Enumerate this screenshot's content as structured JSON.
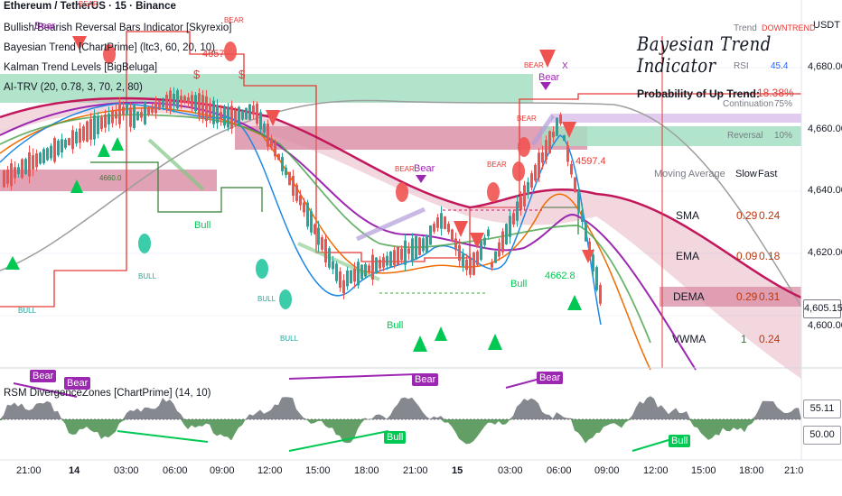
{
  "header": {
    "symbol": "Ethereum / TetherUS · 15 · Binance",
    "indicators": [
      "Bullish/Bearish Reversal Bars Indicator [Skyrexio]",
      "Bayesian Trend [ChartPrime] (ltc3, 60, 20, 10)",
      "Kalman Trend Levels [BigBeluga]",
      "AI-TRV (20, 0.78, 3, 70, 2, 80)"
    ]
  },
  "price_axis": {
    "currency": "USDT",
    "ticks": [
      "4,680.00",
      "4,660.00",
      "4,640.00",
      "4,620.00",
      "4,600.00"
    ],
    "current_price": "4,605.15"
  },
  "time_axis": {
    "ticks": [
      "21:00",
      "14",
      "03:00",
      "06:00",
      "09:00",
      "12:00",
      "15:00",
      "18:00",
      "21:00",
      "15",
      "03:00",
      "06:00",
      "09:00",
      "12:00",
      "15:00",
      "18:00",
      "21:0"
    ]
  },
  "rsi_pane": {
    "title": "RSM DivergenceZones [ChartPrime] (14, 10)",
    "value_badge": "55.11",
    "level_badge": "50.00",
    "tags": [
      "Bear",
      "Bear",
      "Bear",
      "Bear",
      "Bull",
      "Bull"
    ]
  },
  "bayesian_panel": {
    "title": "Bayesian Trend Indicator",
    "trend_label": "Trend",
    "trend_value": "DOWNTREND",
    "rsi_label": "RSI",
    "rsi_value": "45.4",
    "prob_label": "Probability of Up Trend:",
    "prob_value": "18.38%",
    "continuation_label": "Continuation",
    "continuation_value": "75%",
    "reversal_label": "Reversal",
    "reversal_value": "10%",
    "table": {
      "headers": [
        "Moving Average",
        "Slow",
        "Fast"
      ],
      "rows": [
        {
          "name": "SMA",
          "slow": "0.29",
          "fast": "0.24"
        },
        {
          "name": "EMA",
          "slow": "0.09",
          "fast": "0.18"
        },
        {
          "name": "DEMA",
          "slow": "0.29",
          "fast": "0.31"
        },
        {
          "name": "VWMA",
          "slow": "1",
          "fast": "0.24"
        }
      ]
    }
  },
  "annotations": {
    "bear_labels": [
      "BEAR",
      "BEAR",
      "BEAR",
      "BEAR",
      "BEAR",
      "BEAR",
      "Bear",
      "Bear",
      "Bear"
    ],
    "bull_labels": [
      "BULL",
      "BULL",
      "BULL",
      "BULL",
      "Bull",
      "Bull",
      "Bull"
    ],
    "level_4657": "4657",
    "level_4597": "4597.4",
    "level_4662": "4662.8",
    "level_4660": "4660.0",
    "dollar": "$",
    "x_mark": "X"
  },
  "colors": {
    "bull": "#26a69a",
    "bear": "#ef5350",
    "zone_green": "#a5dfc3",
    "zone_red": "#d98ba3",
    "trend_red": "#c2185b",
    "purple": "#9c27b0"
  }
}
